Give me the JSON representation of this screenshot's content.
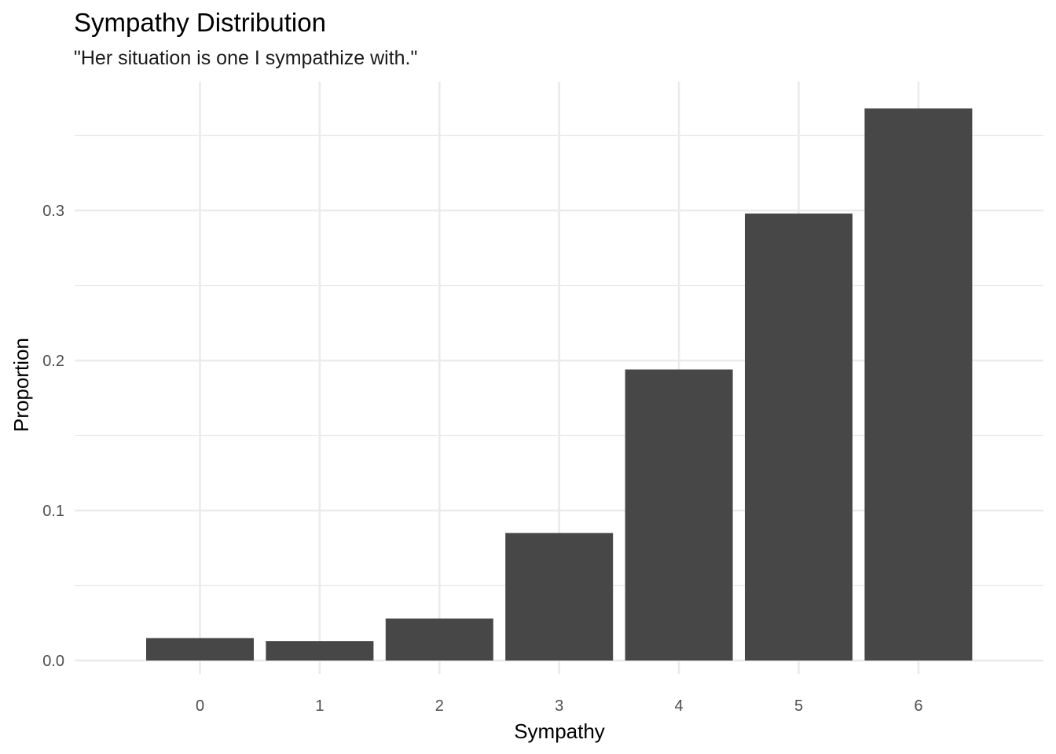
{
  "chart_data": {
    "type": "bar",
    "title": "Sympathy Distribution",
    "subtitle": "\"Her situation is one I sympathize with.\"",
    "xlabel": "Sympathy",
    "ylabel": "Proportion",
    "categories": [
      "0",
      "1",
      "2",
      "3",
      "4",
      "5",
      "6"
    ],
    "values": [
      0.015,
      0.013,
      0.028,
      0.085,
      0.194,
      0.298,
      0.368
    ],
    "y_ticks": [
      0.0,
      0.1,
      0.2,
      0.3
    ],
    "y_tick_labels": [
      "0.0",
      "0.1",
      "0.2",
      "0.3"
    ],
    "ylim": [
      0,
      0.386
    ],
    "grid": true,
    "legend": "none",
    "bar_color": "#474747",
    "grid_color": "#ebebeb"
  }
}
